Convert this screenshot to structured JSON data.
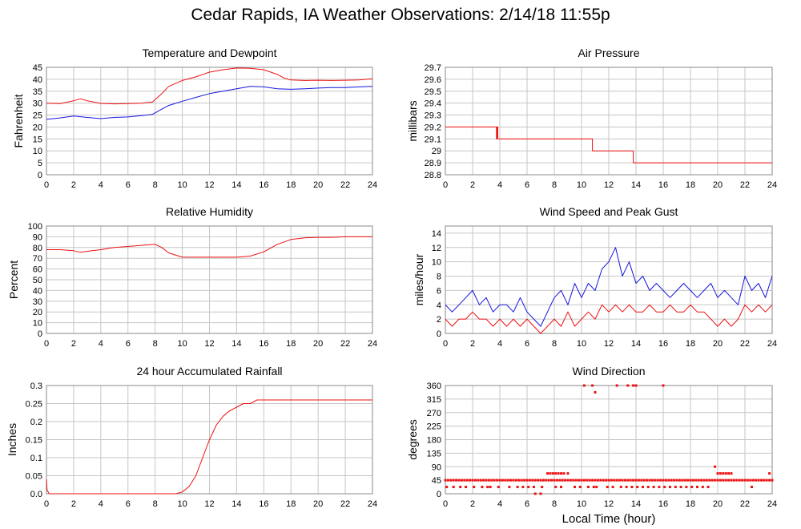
{
  "title": "Cedar Rapids, IA Weather Observations: 2/14/18 11:55p",
  "colors": {
    "red": "#ee1111",
    "blue": "#1515dd",
    "grid": "#c6c6c6",
    "frame": "#888888"
  },
  "chart_data": [
    {
      "id": "temperature",
      "type": "line",
      "title": "Temperature and Dewpoint",
      "xlabel": "",
      "ylabel": "Fahrenheit",
      "xlim": [
        0,
        24
      ],
      "ylim": [
        0,
        45
      ],
      "xticks": [
        0,
        2,
        4,
        6,
        8,
        10,
        12,
        14,
        16,
        18,
        20,
        22,
        24
      ],
      "yticks": [
        0,
        5,
        10,
        15,
        20,
        25,
        30,
        35,
        40,
        45
      ],
      "grid": true,
      "series": [
        {
          "color": "#ee1111",
          "x": [
            0,
            1,
            2,
            2.5,
            3,
            4,
            5,
            6,
            7,
            7.8,
            8.5,
            9,
            10,
            11,
            12,
            13,
            14,
            15,
            16,
            17,
            17.5,
            18,
            19,
            20,
            21,
            22,
            23,
            24
          ],
          "y": [
            30,
            29.8,
            31,
            31.8,
            31,
            29.9,
            29.7,
            29.8,
            30,
            30.5,
            34,
            37,
            39.5,
            41,
            43,
            44,
            44.7,
            44.6,
            44,
            42,
            40.5,
            39.7,
            39.5,
            39.6,
            39.5,
            39.6,
            39.7,
            40.2
          ]
        },
        {
          "color": "#1515dd",
          "x": [
            0,
            1,
            2,
            3,
            4,
            5,
            6,
            7,
            7.8,
            8.5,
            9,
            10,
            11,
            12,
            13,
            14,
            15,
            16,
            17,
            18,
            19,
            20,
            21,
            22,
            23,
            24
          ],
          "y": [
            23.2,
            23.8,
            24.6,
            24,
            23.5,
            24,
            24.2,
            24.8,
            25.3,
            27.5,
            29,
            30.8,
            32.4,
            34,
            35,
            36,
            37,
            36.8,
            36,
            35.8,
            36,
            36.3,
            36.5,
            36.5,
            36.8,
            37
          ]
        }
      ]
    },
    {
      "id": "pressure",
      "type": "line",
      "title": "Air Pressure",
      "xlabel": "",
      "ylabel": "millibars",
      "xlim": [
        0,
        24
      ],
      "ylim": [
        28.8,
        29.7
      ],
      "xticks": [
        0,
        2,
        4,
        6,
        8,
        10,
        12,
        14,
        16,
        18,
        20,
        22,
        24
      ],
      "yticks": [
        28.8,
        28.9,
        29.0,
        29.1,
        29.2,
        29.3,
        29.4,
        29.5,
        29.6,
        29.7
      ],
      "grid": true,
      "series": [
        {
          "color": "#ee1111",
          "x": [
            0,
            3.75,
            3.75,
            3.8,
            3.8,
            3.85,
            3.85,
            10.8,
            10.8,
            13.8,
            13.8,
            24
          ],
          "y": [
            29.2,
            29.2,
            29.1,
            29.1,
            29.2,
            29.2,
            29.1,
            29.1,
            29.0,
            29.0,
            28.9,
            28.9
          ]
        }
      ]
    },
    {
      "id": "humidity",
      "type": "line",
      "title": "Relative Humidity",
      "xlabel": "",
      "ylabel": "Percent",
      "xlim": [
        0,
        24
      ],
      "ylim": [
        0,
        100
      ],
      "xticks": [
        0,
        2,
        4,
        6,
        8,
        10,
        12,
        14,
        16,
        18,
        20,
        22,
        24
      ],
      "yticks": [
        0,
        10,
        20,
        30,
        40,
        50,
        60,
        70,
        80,
        90,
        100
      ],
      "grid": true,
      "series": [
        {
          "color": "#ee1111",
          "x": [
            0,
            1,
            2,
            2.5,
            3,
            4,
            5,
            6,
            7,
            8,
            8.5,
            9,
            10,
            11,
            12,
            13,
            14,
            15,
            16,
            17,
            18,
            19,
            20,
            21,
            22,
            23,
            24
          ],
          "y": [
            78,
            78,
            77,
            75.5,
            76.5,
            78,
            80,
            81,
            82,
            83,
            80,
            75,
            71,
            71,
            71,
            71,
            71,
            72,
            76,
            83,
            87.5,
            89,
            89.5,
            89.5,
            90,
            90,
            90
          ]
        }
      ]
    },
    {
      "id": "wind-speed",
      "type": "line",
      "title": "Wind Speed and Peak Gust",
      "xlabel": "",
      "ylabel": "miles/hour",
      "xlim": [
        0,
        24
      ],
      "ylim": [
        0,
        15
      ],
      "xticks": [
        0,
        2,
        4,
        6,
        8,
        10,
        12,
        14,
        16,
        18,
        20,
        22,
        24
      ],
      "yticks": [
        0,
        2,
        4,
        6,
        8,
        10,
        12,
        14
      ],
      "grid": true,
      "series": [
        {
          "color": "#1515dd",
          "x": [
            0,
            0.5,
            1,
            1.5,
            2,
            2.5,
            3,
            3.5,
            4,
            4.5,
            5,
            5.5,
            6,
            6.5,
            7,
            7.5,
            8,
            8.5,
            9,
            9.5,
            10,
            10.5,
            11,
            11.5,
            12,
            12.5,
            13,
            13.5,
            14,
            14.5,
            15,
            15.5,
            16,
            16.5,
            17,
            17.5,
            18,
            18.5,
            19,
            19.5,
            20,
            20.5,
            21,
            21.5,
            22,
            22.5,
            23,
            23.5,
            24
          ],
          "y": [
            4,
            3,
            4,
            5,
            6,
            4,
            5,
            3,
            4,
            4,
            3,
            5,
            3,
            2,
            1,
            3,
            5,
            6,
            4,
            7,
            5,
            7,
            6,
            9,
            10,
            12,
            8,
            10,
            7,
            8,
            6,
            7,
            6,
            5,
            6,
            7,
            6,
            5,
            6,
            7,
            5,
            6,
            5,
            4,
            8,
            6,
            7,
            5,
            8
          ]
        },
        {
          "color": "#ee1111",
          "x": [
            0,
            0.5,
            1,
            1.5,
            2,
            2.5,
            3,
            3.5,
            4,
            4.5,
            5,
            5.5,
            6,
            6.5,
            7,
            7.5,
            8,
            8.5,
            9,
            9.5,
            10,
            10.5,
            11,
            11.5,
            12,
            12.5,
            13,
            13.5,
            14,
            14.5,
            15,
            15.5,
            16,
            16.5,
            17,
            17.5,
            18,
            18.5,
            19,
            19.5,
            20,
            20.5,
            21,
            21.5,
            22,
            22.5,
            23,
            23.5,
            24
          ],
          "y": [
            2,
            1,
            2,
            2,
            3,
            2,
            2,
            1,
            2,
            1,
            2,
            1,
            2,
            1,
            0,
            1,
            2,
            1,
            3,
            1,
            2,
            3,
            2,
            4,
            3,
            4,
            3,
            4,
            3,
            3,
            4,
            3,
            3,
            4,
            3,
            3,
            4,
            3,
            3,
            2,
            1,
            2,
            1,
            2,
            4,
            3,
            4,
            3,
            4
          ]
        }
      ]
    },
    {
      "id": "rainfall",
      "type": "line",
      "title": "24 hour Accumulated Rainfall",
      "xlabel": "",
      "ylabel": "Inches",
      "xlim": [
        0,
        24
      ],
      "ylim": [
        0,
        0.3
      ],
      "xticks": [
        0,
        2,
        4,
        6,
        8,
        10,
        12,
        14,
        16,
        18,
        20,
        22,
        24
      ],
      "yticks": [
        0.0,
        0.05,
        0.1,
        0.15,
        0.2,
        0.25,
        0.3
      ],
      "ytick_labels": [
        "0.0",
        "0.05",
        "0.1",
        "0.15",
        "0.2",
        "0.25",
        "0.3"
      ],
      "grid": true,
      "series": [
        {
          "color": "#ee1111",
          "x": [
            0,
            0.05,
            0.2,
            9.5,
            10,
            10.5,
            11,
            11.5,
            12,
            12.5,
            13,
            13.5,
            14,
            14.5,
            15,
            15.5,
            16,
            24
          ],
          "y": [
            0.04,
            0.01,
            0,
            0,
            0.005,
            0.02,
            0.05,
            0.1,
            0.15,
            0.19,
            0.215,
            0.23,
            0.24,
            0.25,
            0.25,
            0.26,
            0.26,
            0.26
          ]
        }
      ]
    },
    {
      "id": "wind-direction",
      "type": "scatter",
      "title": "Wind Direction",
      "xlabel": "Local Time (hour)",
      "ylabel": "degrees",
      "xlim": [
        0,
        24
      ],
      "ylim": [
        0,
        360
      ],
      "xticks": [
        0,
        2,
        4,
        6,
        8,
        10,
        12,
        14,
        16,
        18,
        20,
        22,
        24
      ],
      "yticks": [
        0,
        45,
        90,
        135,
        180,
        225,
        270,
        315,
        360
      ],
      "grid": true,
      "series": [
        {
          "color": "#ee1111",
          "x": [
            0,
            0.2,
            0.4,
            0.6,
            0.8,
            1,
            1.2,
            1.4,
            1.6,
            1.8,
            2,
            2.2,
            2.4,
            2.6,
            2.8,
            3,
            3.2,
            3.4,
            3.6,
            3.8,
            4,
            4.2,
            4.4,
            4.6,
            4.8,
            5,
            5.2,
            5.4,
            5.6,
            5.8,
            6,
            6.2,
            6.4,
            6.6,
            6.8,
            7,
            7.2,
            7.4,
            7.6,
            7.8,
            8,
            8.2,
            8.4,
            8.6,
            8.8,
            9,
            9.2,
            9.4,
            9.6,
            9.8,
            10,
            10.2,
            10.4,
            10.6,
            10.8,
            11,
            11.2,
            11.4,
            11.6,
            11.8,
            12,
            12.2,
            12.4,
            12.6,
            12.8,
            13,
            13.2,
            13.4,
            13.6,
            13.8,
            14,
            14.2,
            14.4,
            14.6,
            14.8,
            15,
            15.2,
            15.4,
            15.6,
            15.8,
            16,
            16.2,
            16.4,
            16.6,
            16.8,
            17,
            17.2,
            17.4,
            17.6,
            17.8,
            18,
            18.2,
            18.4,
            18.6,
            18.8,
            19,
            19.2,
            19.4,
            19.6,
            19.8,
            20,
            20.2,
            20.4,
            20.6,
            20.8,
            21,
            21.2,
            21.4,
            21.6,
            21.8,
            22,
            22.2,
            22.4,
            22.6,
            22.8,
            23,
            23.2,
            23.4,
            23.6,
            23.8,
            24,
            0.1,
            0.6,
            1.1,
            1.5,
            2.1,
            2.7,
            3.1,
            3.3,
            3.9,
            4.7,
            5.3,
            5.7,
            6.1,
            6.5,
            7.1,
            8.1,
            8.5,
            9.5,
            9.9,
            10.5,
            10.9,
            11.1,
            11.9,
            12.3,
            12.9,
            13.3,
            13.7,
            14.1,
            14.5,
            14.9,
            15.3,
            15.7,
            16.1,
            16.5,
            16.9,
            17.3,
            17.7,
            18.1,
            18.5,
            18.9,
            19.3,
            22.5,
            7.5,
            7.7,
            7.9,
            8.1,
            8.3,
            8.5,
            8.7,
            9.0,
            20.0,
            20.2,
            20.4,
            20.6,
            20.8,
            21.0,
            23.8,
            6.6,
            7.0,
            19.8,
            10.2,
            10.8,
            11.0,
            12.6,
            13.4,
            13.8,
            14.0,
            16.0
          ],
          "y": [
            45,
            45,
            45,
            45,
            45,
            45,
            45,
            45,
            45,
            45,
            45,
            45,
            45,
            45,
            45,
            45,
            45,
            45,
            45,
            45,
            45,
            45,
            45,
            45,
            45,
            45,
            45,
            45,
            45,
            45,
            45,
            45,
            45,
            45,
            45,
            45,
            45,
            45,
            45,
            45,
            45,
            45,
            45,
            45,
            45,
            45,
            45,
            45,
            45,
            45,
            45,
            45,
            45,
            45,
            45,
            45,
            45,
            45,
            45,
            45,
            45,
            45,
            45,
            45,
            45,
            45,
            45,
            45,
            45,
            45,
            45,
            45,
            45,
            45,
            45,
            45,
            45,
            45,
            45,
            45,
            45,
            45,
            45,
            45,
            45,
            45,
            45,
            45,
            45,
            45,
            45,
            45,
            45,
            45,
            45,
            45,
            45,
            45,
            45,
            45,
            45,
            45,
            45,
            45,
            45,
            45,
            45,
            45,
            45,
            45,
            45,
            45,
            45,
            45,
            45,
            45,
            45,
            45,
            45,
            45,
            45,
            22.5,
            22.5,
            22.5,
            22.5,
            22.5,
            22.5,
            22.5,
            22.5,
            22.5,
            22.5,
            22.5,
            22.5,
            22.5,
            22.5,
            22.5,
            22.5,
            22.5,
            22.5,
            22.5,
            22.5,
            22.5,
            22.5,
            22.5,
            22.5,
            22.5,
            22.5,
            22.5,
            22.5,
            22.5,
            22.5,
            22.5,
            22.5,
            22.5,
            22.5,
            22.5,
            22.5,
            22.5,
            22.5,
            22.5,
            22.5,
            22.5,
            22.5,
            67.5,
            67.5,
            67.5,
            67.5,
            67.5,
            67.5,
            67.5,
            67.5,
            67.5,
            67.5,
            67.5,
            67.5,
            67.5,
            67.5,
            67.5,
            0,
            0,
            90,
            360,
            360,
            337.5,
            360,
            360,
            360,
            360,
            360
          ]
        }
      ]
    }
  ]
}
